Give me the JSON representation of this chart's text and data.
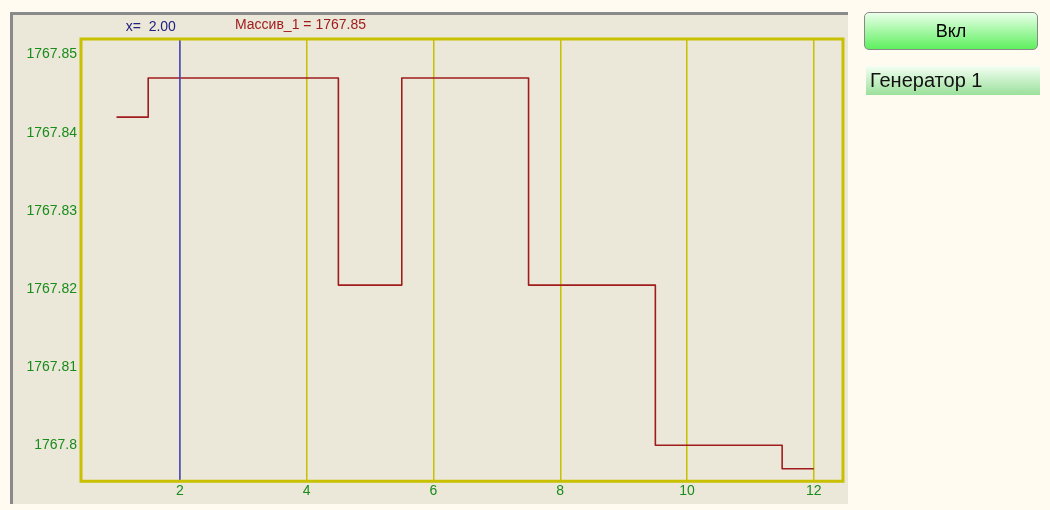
{
  "chart_data": {
    "type": "step",
    "x": [
      1,
      2,
      3,
      4,
      5,
      6,
      7,
      8,
      9,
      10,
      11,
      12
    ],
    "series": [
      {
        "color": "#a01c1c",
        "values": [
          1767.842,
          1767.847,
          1767.847,
          1767.847,
          1767.8205,
          1767.847,
          1767.847,
          1767.8205,
          1767.8205,
          1767.8,
          1767.8,
          1767.797
        ]
      }
    ],
    "xlim": [
      0.44,
      12.46
    ],
    "xticks": [
      2,
      4,
      6,
      8,
      10,
      12
    ],
    "ylim": [
      1767.7954,
      1767.852
    ],
    "yticks": [
      1767.8,
      1767.81,
      1767.82,
      1767.83,
      1767.84,
      1767.85
    ],
    "grid": "x",
    "legend": false,
    "ref_lines": [
      {
        "axis": "x",
        "value": 2,
        "label": "x=  2.00",
        "color": "#4040d8"
      }
    ],
    "annotations": [
      "Массив_1 = 1767.85",
      "Вкл",
      "Генератор 1"
    ]
  }
}
